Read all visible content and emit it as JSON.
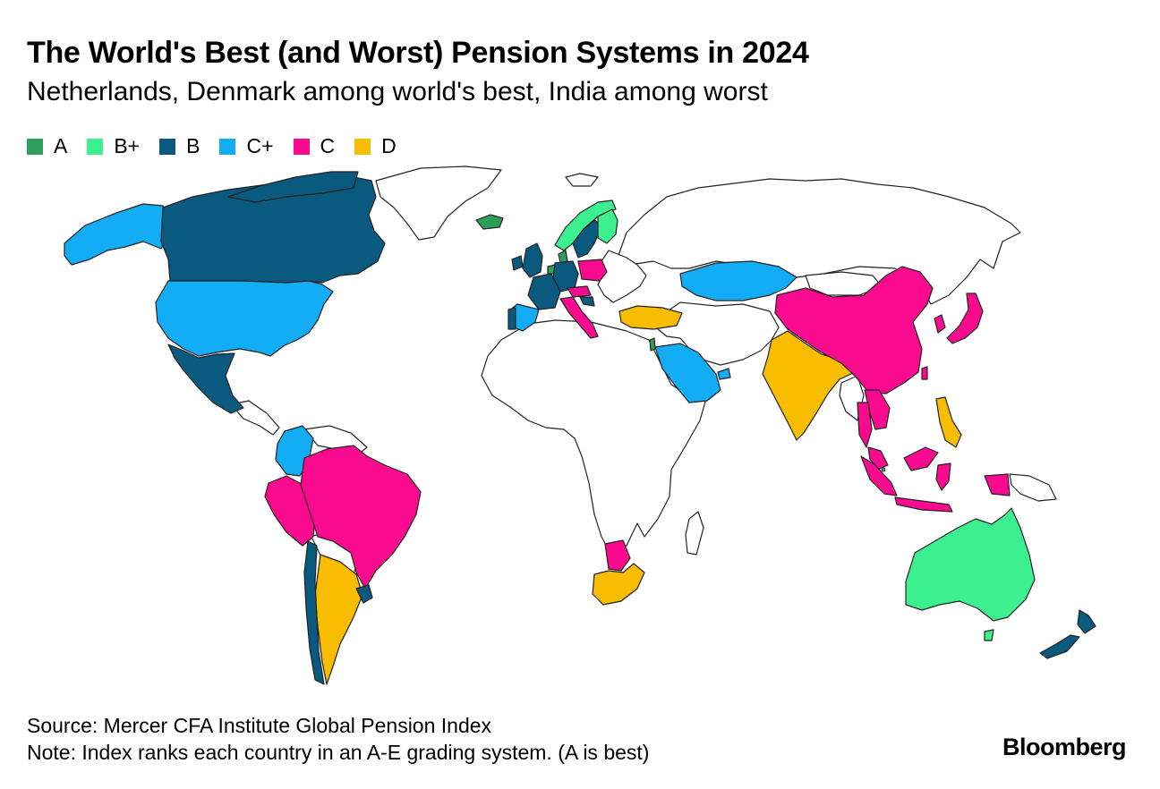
{
  "title": "The World's Best (and Worst) Pension Systems in 2024",
  "subtitle": "Netherlands, Denmark among world's best, India among worst",
  "legend": [
    {
      "label": "A",
      "color": "#2e9e5b"
    },
    {
      "label": "B+",
      "color": "#3df08f"
    },
    {
      "label": "B",
      "color": "#0a5a80"
    },
    {
      "label": "C+",
      "color": "#13adf5"
    },
    {
      "label": "C",
      "color": "#fa0a8e"
    },
    {
      "label": "D",
      "color": "#f8bc00"
    }
  ],
  "unrated_color": "#ffffff",
  "map_data": [
    {
      "country": "Netherlands",
      "grade": "A"
    },
    {
      "country": "Iceland",
      "grade": "A"
    },
    {
      "country": "Denmark",
      "grade": "A"
    },
    {
      "country": "Israel",
      "grade": "A"
    },
    {
      "country": "Singapore",
      "grade": "A"
    },
    {
      "country": "Australia",
      "grade": "B+"
    },
    {
      "country": "Finland",
      "grade": "B+"
    },
    {
      "country": "Norway",
      "grade": "B+"
    },
    {
      "country": "Canada",
      "grade": "B"
    },
    {
      "country": "Sweden",
      "grade": "B"
    },
    {
      "country": "United Kingdom",
      "grade": "B"
    },
    {
      "country": "Ireland",
      "grade": "B"
    },
    {
      "country": "France",
      "grade": "B"
    },
    {
      "country": "Germany",
      "grade": "B"
    },
    {
      "country": "Switzerland",
      "grade": "B"
    },
    {
      "country": "Belgium",
      "grade": "B"
    },
    {
      "country": "Croatia",
      "grade": "B"
    },
    {
      "country": "Mexico",
      "grade": "B"
    },
    {
      "country": "Chile",
      "grade": "B"
    },
    {
      "country": "Uruguay",
      "grade": "B"
    },
    {
      "country": "New Zealand",
      "grade": "B"
    },
    {
      "country": "Portugal",
      "grade": "B"
    },
    {
      "country": "United States",
      "grade": "C+"
    },
    {
      "country": "Spain",
      "grade": "C+"
    },
    {
      "country": "Kazakhstan",
      "grade": "C+"
    },
    {
      "country": "Saudi Arabia",
      "grade": "C+"
    },
    {
      "country": "UAE",
      "grade": "C+"
    },
    {
      "country": "Colombia",
      "grade": "C+"
    },
    {
      "country": "Austria",
      "grade": "C"
    },
    {
      "country": "Poland",
      "grade": "C"
    },
    {
      "country": "Italy",
      "grade": "C"
    },
    {
      "country": "China",
      "grade": "C"
    },
    {
      "country": "Japan",
      "grade": "C"
    },
    {
      "country": "South Korea",
      "grade": "C"
    },
    {
      "country": "Taiwan",
      "grade": "C"
    },
    {
      "country": "Hong Kong",
      "grade": "C"
    },
    {
      "country": "Vietnam",
      "grade": "C"
    },
    {
      "country": "Thailand",
      "grade": "C"
    },
    {
      "country": "Malaysia",
      "grade": "C"
    },
    {
      "country": "Indonesia",
      "grade": "C"
    },
    {
      "country": "Brazil",
      "grade": "C"
    },
    {
      "country": "Peru",
      "grade": "C"
    },
    {
      "country": "Botswana",
      "grade": "C"
    },
    {
      "country": "India",
      "grade": "D"
    },
    {
      "country": "Philippines",
      "grade": "D"
    },
    {
      "country": "Turkey",
      "grade": "D"
    },
    {
      "country": "Argentina",
      "grade": "D"
    },
    {
      "country": "South Africa",
      "grade": "D"
    }
  ],
  "source": "Source: Mercer CFA Institute Global Pension Index",
  "note": "Note: Index ranks each country in an A-E grading system. (A is best)",
  "brand": "Bloomberg"
}
